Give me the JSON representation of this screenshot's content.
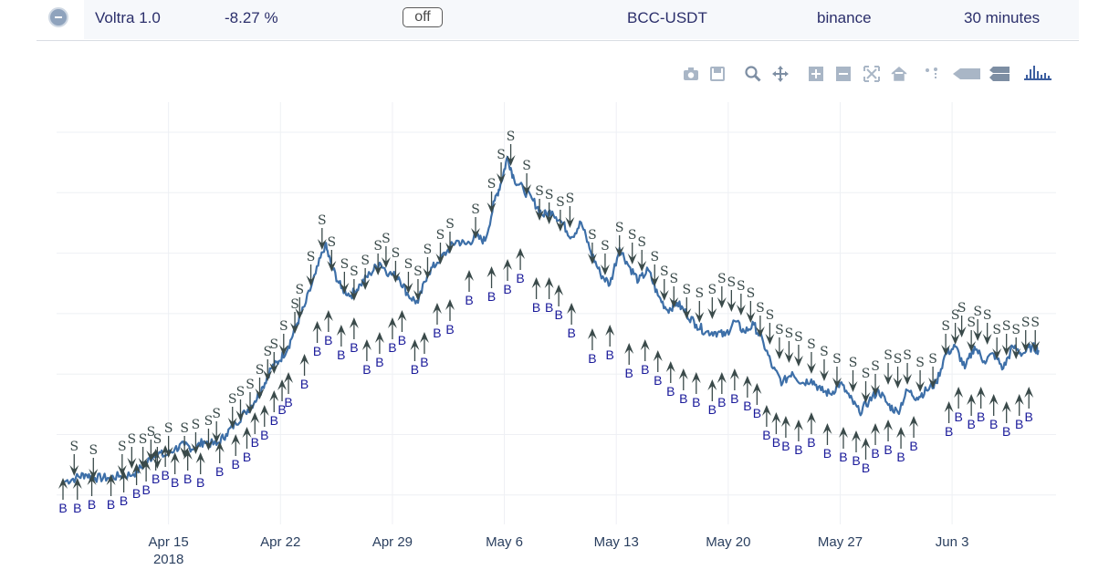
{
  "header": {
    "strategy_name": "Voltra 1.0",
    "performance": "-8.27 %",
    "toggle_label": "off",
    "pair": "BCC-USDT",
    "exchange": "binance",
    "interval": "30 minutes"
  },
  "modebar": {
    "buttons": [
      "camera-icon",
      "save-icon",
      "zoom-icon",
      "pan-icon",
      "zoom-in-icon",
      "zoom-out-icon",
      "autoscale-icon",
      "reset-axes-icon",
      "spike-lines-icon",
      "hover-closest-icon",
      "hover-compare-icon",
      "plotly-logo-icon"
    ]
  },
  "colors": {
    "line": "#3d6fa8",
    "sell": "#3a4a4a",
    "buy": "#1a1a9a",
    "grid": "#eef0f4",
    "tick": "#2a3f5f"
  },
  "chart_data": {
    "type": "line",
    "xlim": [
      0,
      62.5
    ],
    "ylim": [
      0,
      1
    ],
    "x_ticks": [
      {
        "x": 7,
        "label": "Apr 15",
        "sublabel": "2018"
      },
      {
        "x": 14,
        "label": "Apr 22"
      },
      {
        "x": 21,
        "label": "Apr 29"
      },
      {
        "x": 28,
        "label": "May 6"
      },
      {
        "x": 35,
        "label": "May 13"
      },
      {
        "x": 42,
        "label": "May 20"
      },
      {
        "x": 49,
        "label": "May 27"
      },
      {
        "x": 56,
        "label": "Jun 3"
      }
    ],
    "y_gridlines": 7,
    "series": [
      {
        "points": [
          [
            0.5,
            0.03
          ],
          [
            1.2,
            0.04
          ],
          [
            1.8,
            0.05
          ],
          [
            2.4,
            0.04
          ],
          [
            3.2,
            0.04
          ],
          [
            4.0,
            0.045
          ],
          [
            4.8,
            0.05
          ],
          [
            5.6,
            0.08
          ],
          [
            6.2,
            0.11
          ],
          [
            6.8,
            0.1
          ],
          [
            7.4,
            0.12
          ],
          [
            8.0,
            0.13
          ],
          [
            8.6,
            0.12
          ],
          [
            9.2,
            0.14
          ],
          [
            10.0,
            0.13
          ],
          [
            10.6,
            0.16
          ],
          [
            11.2,
            0.19
          ],
          [
            11.8,
            0.22
          ],
          [
            12.4,
            0.25
          ],
          [
            12.9,
            0.29
          ],
          [
            13.4,
            0.34
          ],
          [
            13.9,
            0.36
          ],
          [
            14.5,
            0.4
          ],
          [
            15.0,
            0.46
          ],
          [
            15.5,
            0.51
          ],
          [
            16.2,
            0.6
          ],
          [
            16.8,
            0.68
          ],
          [
            17.2,
            0.62
          ],
          [
            17.8,
            0.56
          ],
          [
            18.4,
            0.54
          ],
          [
            19.0,
            0.57
          ],
          [
            19.6,
            0.6
          ],
          [
            20.2,
            0.63
          ],
          [
            20.8,
            0.6
          ],
          [
            21.4,
            0.59
          ],
          [
            22.0,
            0.54
          ],
          [
            22.6,
            0.52
          ],
          [
            23.2,
            0.6
          ],
          [
            23.8,
            0.63
          ],
          [
            24.4,
            0.66
          ],
          [
            25.0,
            0.69
          ],
          [
            25.6,
            0.68
          ],
          [
            26.2,
            0.7
          ],
          [
            26.8,
            0.69
          ],
          [
            27.4,
            0.8
          ],
          [
            27.8,
            0.85
          ],
          [
            28.2,
            0.92
          ],
          [
            28.6,
            0.86
          ],
          [
            29.2,
            0.83
          ],
          [
            29.8,
            0.8
          ],
          [
            30.4,
            0.76
          ],
          [
            31.0,
            0.77
          ],
          [
            31.6,
            0.74
          ],
          [
            32.2,
            0.7
          ],
          [
            32.8,
            0.74
          ],
          [
            33.4,
            0.66
          ],
          [
            34.0,
            0.6
          ],
          [
            34.6,
            0.57
          ],
          [
            35.2,
            0.67
          ],
          [
            35.8,
            0.62
          ],
          [
            36.4,
            0.58
          ],
          [
            37.0,
            0.61
          ],
          [
            37.6,
            0.54
          ],
          [
            38.2,
            0.5
          ],
          [
            38.8,
            0.52
          ],
          [
            39.4,
            0.49
          ],
          [
            40.0,
            0.46
          ],
          [
            40.6,
            0.44
          ],
          [
            41.2,
            0.44
          ],
          [
            41.8,
            0.43
          ],
          [
            42.4,
            0.47
          ],
          [
            43.0,
            0.44
          ],
          [
            43.6,
            0.46
          ],
          [
            44.2,
            0.41
          ],
          [
            44.8,
            0.34
          ],
          [
            45.4,
            0.3
          ],
          [
            46.0,
            0.33
          ],
          [
            46.6,
            0.3
          ],
          [
            47.2,
            0.31
          ],
          [
            47.8,
            0.28
          ],
          [
            48.4,
            0.27
          ],
          [
            49.0,
            0.3
          ],
          [
            49.6,
            0.26
          ],
          [
            50.2,
            0.22
          ],
          [
            50.8,
            0.25
          ],
          [
            51.4,
            0.28
          ],
          [
            52.0,
            0.24
          ],
          [
            52.6,
            0.22
          ],
          [
            53.2,
            0.28
          ],
          [
            53.8,
            0.26
          ],
          [
            54.4,
            0.28
          ],
          [
            55.0,
            0.3
          ],
          [
            55.6,
            0.38
          ],
          [
            56.2,
            0.4
          ],
          [
            56.8,
            0.34
          ],
          [
            57.4,
            0.4
          ],
          [
            58.0,
            0.36
          ],
          [
            58.6,
            0.38
          ],
          [
            59.2,
            0.34
          ],
          [
            59.8,
            0.4
          ],
          [
            60.4,
            0.38
          ],
          [
            61.0,
            0.4
          ],
          [
            61.4,
            0.39
          ]
        ]
      }
    ],
    "sell_markers": [
      [
        1.1,
        0.1
      ],
      [
        2.3,
        0.09
      ],
      [
        4.1,
        0.1
      ],
      [
        4.7,
        0.12
      ],
      [
        5.4,
        0.12
      ],
      [
        5.9,
        0.14
      ],
      [
        6.3,
        0.12
      ],
      [
        7.0,
        0.15
      ],
      [
        8.0,
        0.15
      ],
      [
        8.7,
        0.16
      ],
      [
        9.5,
        0.17
      ],
      [
        10.0,
        0.19
      ],
      [
        11.0,
        0.23
      ],
      [
        11.5,
        0.25
      ],
      [
        12.1,
        0.27
      ],
      [
        12.7,
        0.31
      ],
      [
        13.2,
        0.36
      ],
      [
        13.6,
        0.38
      ],
      [
        14.2,
        0.43
      ],
      [
        14.9,
        0.49
      ],
      [
        15.2,
        0.53
      ],
      [
        15.9,
        0.62
      ],
      [
        16.6,
        0.72
      ],
      [
        17.2,
        0.66
      ],
      [
        18.0,
        0.6
      ],
      [
        18.6,
        0.58
      ],
      [
        19.3,
        0.61
      ],
      [
        20.1,
        0.65
      ],
      [
        20.6,
        0.67
      ],
      [
        21.2,
        0.63
      ],
      [
        22.0,
        0.6
      ],
      [
        22.6,
        0.58
      ],
      [
        23.2,
        0.64
      ],
      [
        24.0,
        0.68
      ],
      [
        24.6,
        0.71
      ],
      [
        26.2,
        0.75
      ],
      [
        27.2,
        0.82
      ],
      [
        27.8,
        0.9
      ],
      [
        28.4,
        0.95
      ],
      [
        29.4,
        0.87
      ],
      [
        30.2,
        0.8
      ],
      [
        30.8,
        0.79
      ],
      [
        31.5,
        0.77
      ],
      [
        32.1,
        0.78
      ],
      [
        33.5,
        0.68
      ],
      [
        34.3,
        0.65
      ],
      [
        35.2,
        0.7
      ],
      [
        36.0,
        0.68
      ],
      [
        36.6,
        0.66
      ],
      [
        37.4,
        0.62
      ],
      [
        38.0,
        0.58
      ],
      [
        38.6,
        0.56
      ],
      [
        39.4,
        0.53
      ],
      [
        40.2,
        0.52
      ],
      [
        41.0,
        0.53
      ],
      [
        41.6,
        0.56
      ],
      [
        42.2,
        0.55
      ],
      [
        42.8,
        0.54
      ],
      [
        43.4,
        0.52
      ],
      [
        44.0,
        0.48
      ],
      [
        44.6,
        0.46
      ],
      [
        45.2,
        0.42
      ],
      [
        45.8,
        0.41
      ],
      [
        46.4,
        0.4
      ],
      [
        47.2,
        0.38
      ],
      [
        48.0,
        0.36
      ],
      [
        48.8,
        0.34
      ],
      [
        49.8,
        0.33
      ],
      [
        50.6,
        0.3
      ],
      [
        51.2,
        0.32
      ],
      [
        52.0,
        0.35
      ],
      [
        52.6,
        0.34
      ],
      [
        53.2,
        0.35
      ],
      [
        54.0,
        0.33
      ],
      [
        54.8,
        0.34
      ],
      [
        55.6,
        0.43
      ],
      [
        56.2,
        0.46
      ],
      [
        56.6,
        0.48
      ],
      [
        57.2,
        0.44
      ],
      [
        57.6,
        0.47
      ],
      [
        58.2,
        0.46
      ],
      [
        58.8,
        0.42
      ],
      [
        59.4,
        0.43
      ],
      [
        60.0,
        0.42
      ],
      [
        60.6,
        0.44
      ],
      [
        61.2,
        0.44
      ]
    ],
    "buy_markers": [
      [
        0.4,
        -0.02
      ],
      [
        1.3,
        -0.02
      ],
      [
        2.2,
        -0.01
      ],
      [
        3.4,
        -0.01
      ],
      [
        4.2,
        0.0
      ],
      [
        5.0,
        0.02
      ],
      [
        5.6,
        0.03
      ],
      [
        6.2,
        0.06
      ],
      [
        6.8,
        0.07
      ],
      [
        7.4,
        0.05
      ],
      [
        8.2,
        0.06
      ],
      [
        9.0,
        0.05
      ],
      [
        10.2,
        0.08
      ],
      [
        11.2,
        0.1
      ],
      [
        11.9,
        0.12
      ],
      [
        12.4,
        0.16
      ],
      [
        13.0,
        0.18
      ],
      [
        13.6,
        0.22
      ],
      [
        14.1,
        0.25
      ],
      [
        14.5,
        0.27
      ],
      [
        15.5,
        0.32
      ],
      [
        16.3,
        0.41
      ],
      [
        17.0,
        0.44
      ],
      [
        17.8,
        0.4
      ],
      [
        18.6,
        0.42
      ],
      [
        19.4,
        0.36
      ],
      [
        20.2,
        0.38
      ],
      [
        21.0,
        0.42
      ],
      [
        21.6,
        0.44
      ],
      [
        22.4,
        0.36
      ],
      [
        23.0,
        0.38
      ],
      [
        23.8,
        0.46
      ],
      [
        24.6,
        0.47
      ],
      [
        25.8,
        0.55
      ],
      [
        27.2,
        0.56
      ],
      [
        28.2,
        0.58
      ],
      [
        29.0,
        0.61
      ],
      [
        30.0,
        0.53
      ],
      [
        30.8,
        0.53
      ],
      [
        31.4,
        0.51
      ],
      [
        32.2,
        0.46
      ],
      [
        33.5,
        0.39
      ],
      [
        34.6,
        0.4
      ],
      [
        35.8,
        0.35
      ],
      [
        36.8,
        0.36
      ],
      [
        37.6,
        0.33
      ],
      [
        38.4,
        0.3
      ],
      [
        39.2,
        0.28
      ],
      [
        40.0,
        0.27
      ],
      [
        41.0,
        0.25
      ],
      [
        41.6,
        0.27
      ],
      [
        42.4,
        0.28
      ],
      [
        43.2,
        0.26
      ],
      [
        43.8,
        0.24
      ],
      [
        44.4,
        0.18
      ],
      [
        45.0,
        0.16
      ],
      [
        45.6,
        0.15
      ],
      [
        46.4,
        0.14
      ],
      [
        47.2,
        0.16
      ],
      [
        48.2,
        0.13
      ],
      [
        49.2,
        0.12
      ],
      [
        50.0,
        0.11
      ],
      [
        50.6,
        0.09
      ],
      [
        51.2,
        0.13
      ],
      [
        52.0,
        0.14
      ],
      [
        52.8,
        0.12
      ],
      [
        53.6,
        0.15
      ],
      [
        55.8,
        0.19
      ],
      [
        56.4,
        0.23
      ],
      [
        57.2,
        0.21
      ],
      [
        57.8,
        0.23
      ],
      [
        58.6,
        0.21
      ],
      [
        59.4,
        0.19
      ],
      [
        60.2,
        0.21
      ],
      [
        60.8,
        0.23
      ]
    ]
  }
}
